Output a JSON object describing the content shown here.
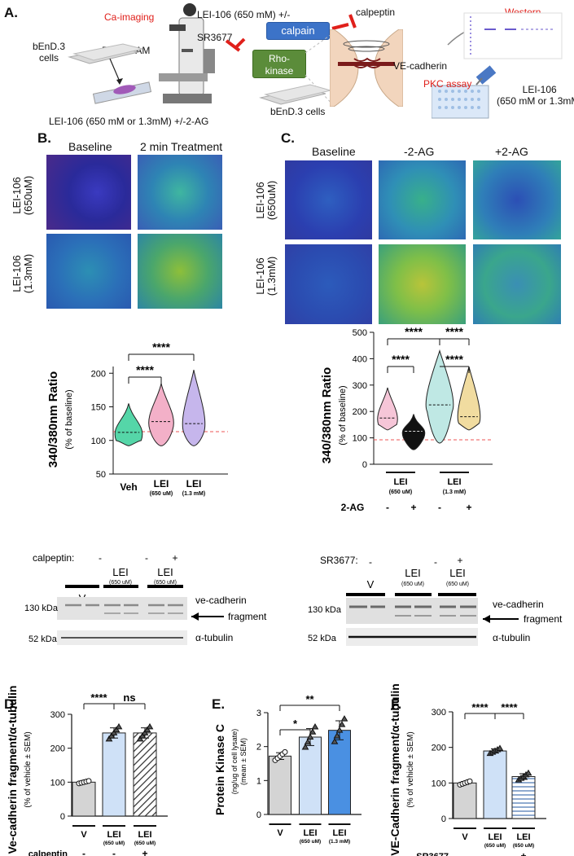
{
  "panelA": {
    "label": "A.",
    "ca_imaging": "Ca-imaging",
    "bend3_cells_left": "bEnD.3\ncells",
    "fura": "Fura -2 AM",
    "lei_bottom": "LEI-106 (650 mM or 1.3mM) +/-2-AG",
    "lei_top": "LEI-106 (650 mM) +/-",
    "calpeptin": "calpeptin",
    "sr3677": "SR3677",
    "calpain": "calpain",
    "rho_kinase": "Rho-\nkinase",
    "bend3_cells_mid": "bEnD.3 cells",
    "ve_cadherin": "VE-cadherin",
    "western": "Western",
    "pkc_assay": "PKC assay",
    "lei_right": "LEI-106\n(650 mM or 1.3mM)",
    "colors": {
      "red": "#e0201b",
      "calpain": "#3c73c8",
      "rho": "#5b8c3a"
    }
  },
  "panelB": {
    "label": "B.",
    "col1": "Baseline",
    "col2": "2 min Treatment",
    "row1": "LEI-106\n(650uM)",
    "row2": "LEI-106\n(1.3mM)"
  },
  "panelC": {
    "label": "C.",
    "col1": "Baseline",
    "col2": "-2-AG",
    "col3": "+2-AG",
    "row1": "LEI-106\n(650uM)",
    "row2": "LEI-106\n(1.3mM)"
  },
  "chartB": {
    "type": "violin",
    "ylabel": "340/380nm Ratio",
    "ylabel_sub": "(% of baseline)",
    "yticks": [
      "200",
      "150",
      "100",
      "50"
    ],
    "ylim": [
      50,
      210
    ],
    "categories": [
      "Veh",
      "LEI",
      "LEI"
    ],
    "cat_subs": [
      "",
      "(650 uM)",
      "(1.3 mM)"
    ],
    "medians": [
      112,
      128,
      125
    ],
    "sig": [
      "****",
      "****"
    ],
    "baseline": 100
  },
  "chartC": {
    "type": "violin",
    "ylabel": "340/380nm Ratio",
    "ylabel_sub": "(% of baseline)",
    "yticks": [
      "500",
      "400",
      "300",
      "200",
      "100",
      "0"
    ],
    "ylim": [
      0,
      500
    ],
    "groups": [
      "LEI",
      "LEI"
    ],
    "group_subs": [
      "(650 uM)",
      "(1.3 mM)"
    ],
    "twoag_label": "2-AG",
    "twoag_signs": [
      "-",
      "+",
      "-",
      "+"
    ],
    "medians": [
      175,
      125,
      225,
      180
    ],
    "sig": [
      "****",
      "****",
      "****",
      "****"
    ],
    "baseline": 100
  },
  "blotLeft": {
    "calpeptin": "calpeptin:",
    "signs": [
      "-",
      "-",
      "+"
    ],
    "lanes": [
      "V",
      "LEI",
      "LEI"
    ],
    "lane_subs": [
      "",
      "(650 uM)",
      "(650 uM)"
    ],
    "kda1": "130 kDa",
    "kda2": "52 kDa",
    "ve": "ve-cadherin",
    "fragment": "fragment",
    "tubulin": "α-tubulin"
  },
  "blotRight": {
    "sr": "SR3677:",
    "signs": [
      "-",
      "-",
      "+"
    ],
    "lanes": [
      "V",
      "LEI",
      "LEI"
    ],
    "lane_subs": [
      "",
      "(650 uM)",
      "(650 uM)"
    ],
    "kda1": "130 kDa",
    "kda2": "52 kDa",
    "ve": "ve-cadherin",
    "fragment": "fragment",
    "tubulin": "α-tubulin"
  },
  "chart_data": [
    {
      "panel": "D.",
      "type": "bar",
      "ylabel": "Ve-cadherin fragment/α-tubulin",
      "ylabel_sub": "(% of vehicle ± SEM)",
      "ylim": [
        0,
        300
      ],
      "yticks": [
        0,
        100,
        200,
        300
      ],
      "categories": [
        "V",
        "LEI",
        "LEI"
      ],
      "cat_subs": [
        "",
        "(650 uM)",
        "(650 uM)"
      ],
      "values": [
        100,
        245,
        245
      ],
      "errors": [
        3,
        15,
        15
      ],
      "colors": [
        "#d4d4d4",
        "#cfe1f7",
        "hatch"
      ],
      "treatment_label": "calpeptin",
      "treatment_signs": [
        "-",
        "-",
        "+"
      ],
      "sig": [
        "****",
        "ns"
      ]
    },
    {
      "panel": "E.",
      "type": "bar",
      "ylabel": "Protein Kinase C",
      "ylabel_sub": "(ng/ug of cell lysate)\n(mean ± SEM)",
      "ylim": [
        0,
        3
      ],
      "yticks": [
        0,
        1,
        2,
        3
      ],
      "categories": [
        "V",
        "LEI",
        "LEI"
      ],
      "cat_subs": [
        "",
        "(650 uM)",
        "(1.3 mM)"
      ],
      "values": [
        1.72,
        2.28,
        2.48
      ],
      "errors": [
        0.1,
        0.25,
        0.28
      ],
      "colors": [
        "#d4d4d4",
        "#cfe1f7",
        "#4a90e2"
      ],
      "sig": [
        "*",
        "**"
      ]
    },
    {
      "panel": "F.",
      "type": "bar",
      "ylabel": "VE-Cadherin fragment/α-tubulin",
      "ylabel_sub": "(% of vehicle ± SEM)",
      "ylim": [
        0,
        300
      ],
      "yticks": [
        0,
        100,
        200,
        300
      ],
      "categories": [
        "V",
        "LEI",
        "LEI"
      ],
      "cat_subs": [
        "",
        "(650 uM)",
        "(650 uM)"
      ],
      "values": [
        100,
        190,
        118
      ],
      "errors": [
        4,
        6,
        8
      ],
      "colors": [
        "#d4d4d4",
        "#cfe1f7",
        "stripe"
      ],
      "treatment_label": "SR3677",
      "treatment_signs": [
        "-",
        "-",
        "+"
      ],
      "sig": [
        "****",
        "****"
      ]
    }
  ]
}
